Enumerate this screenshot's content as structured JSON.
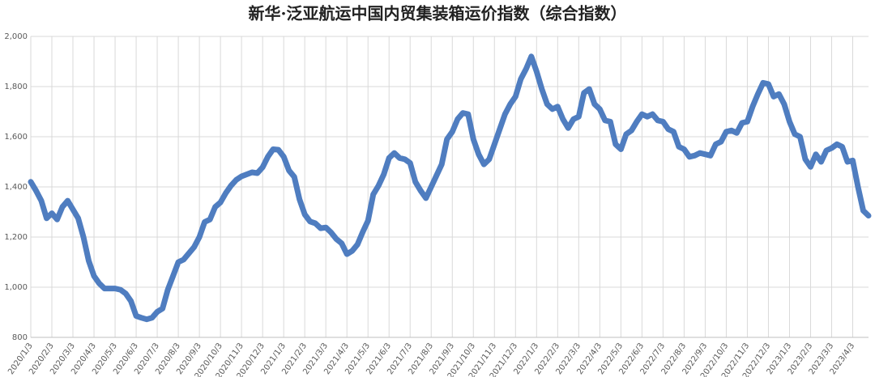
{
  "chart_data": {
    "type": "line",
    "title": "新华·泛亚航运中国内贸集装箱运价指数（综合指数）",
    "categories": [
      "2020/1/3",
      null,
      null,
      null,
      "2020/2/3",
      null,
      null,
      null,
      "2020/3/3",
      null,
      null,
      null,
      "2020/4/3",
      null,
      null,
      null,
      "2020/5/3",
      null,
      null,
      null,
      "2020/6/3",
      null,
      null,
      null,
      "2020/7/3",
      null,
      null,
      null,
      "2020/8/3",
      null,
      null,
      null,
      "2020/9/3",
      null,
      null,
      null,
      "2020/10/3",
      null,
      null,
      null,
      "2020/11/3",
      null,
      null,
      null,
      "2020/12/3",
      null,
      null,
      null,
      "2021/1/3",
      null,
      null,
      null,
      "2021/2/3",
      null,
      null,
      null,
      "2021/3/3",
      null,
      null,
      null,
      "2021/4/3",
      null,
      null,
      null,
      "2021/5/3",
      null,
      null,
      null,
      "2021/6/3",
      null,
      null,
      null,
      "2021/7/3",
      null,
      null,
      null,
      "2021/8/3",
      null,
      null,
      null,
      "2021/9/3",
      null,
      null,
      null,
      "2021/10/3",
      null,
      null,
      null,
      "2021/11/3",
      null,
      null,
      null,
      "2021/12/3",
      null,
      null,
      null,
      "2022/1/3",
      null,
      null,
      null,
      "2022/2/3",
      null,
      null,
      null,
      "2022/3/3",
      null,
      null,
      null,
      "2022/4/3",
      null,
      null,
      null,
      "2022/5/3",
      null,
      null,
      null,
      "2022/6/3",
      null,
      null,
      null,
      "2022/7/3",
      null,
      null,
      null,
      "2022/8/3",
      null,
      null,
      null,
      "2022/9/3",
      null,
      null,
      null,
      "2022/10/3",
      null,
      null,
      null,
      "2022/11/3",
      null,
      null,
      null,
      "2022/12/3",
      null,
      null,
      null,
      "2023/1/3",
      null,
      null,
      null,
      "2023/2/3",
      null,
      null,
      null,
      "2023/3/3",
      null,
      null,
      null,
      "2023/4/3",
      null,
      null,
      null
    ],
    "series": [
      {
        "color": "#4f7dc0",
        "values": [
          1420,
          1385,
          1345,
          1275,
          1295,
          1270,
          1320,
          1345,
          1310,
          1275,
          1200,
          1105,
          1045,
          1015,
          995,
          995,
          995,
          990,
          975,
          945,
          885,
          878,
          872,
          878,
          902,
          915,
          990,
          1045,
          1100,
          1110,
          1135,
          1160,
          1200,
          1260,
          1270,
          1320,
          1338,
          1375,
          1405,
          1428,
          1442,
          1450,
          1458,
          1455,
          1478,
          1520,
          1550,
          1548,
          1520,
          1465,
          1440,
          1350,
          1290,
          1262,
          1255,
          1235,
          1238,
          1218,
          1192,
          1175,
          1132,
          1145,
          1170,
          1220,
          1265,
          1370,
          1405,
          1450,
          1515,
          1535,
          1515,
          1510,
          1495,
          1420,
          1385,
          1355,
          1400,
          1445,
          1490,
          1590,
          1620,
          1670,
          1695,
          1690,
          1590,
          1530,
          1490,
          1510,
          1570,
          1630,
          1690,
          1730,
          1760,
          1830,
          1870,
          1920,
          1860,
          1790,
          1730,
          1710,
          1720,
          1670,
          1635,
          1670,
          1680,
          1775,
          1790,
          1730,
          1710,
          1665,
          1660,
          1570,
          1550,
          1610,
          1625,
          1660,
          1690,
          1680,
          1690,
          1665,
          1660,
          1630,
          1620,
          1560,
          1550,
          1520,
          1525,
          1535,
          1530,
          1525,
          1570,
          1580,
          1620,
          1625,
          1615,
          1655,
          1660,
          1720,
          1770,
          1815,
          1810,
          1760,
          1770,
          1730,
          1660,
          1610,
          1600,
          1510,
          1480,
          1530,
          1500,
          1545,
          1555,
          1570,
          1560,
          1500,
          1505,
          1400,
          1305,
          1285
        ]
      }
    ],
    "ylim": [
      800,
      2000
    ],
    "yticks": [
      800,
      {
        "value": 1000,
        "label": "1,000"
      },
      {
        "value": 1200,
        "label": "1,200"
      },
      {
        "value": 1400,
        "label": "1,400"
      },
      {
        "value": 1600,
        "label": "1,600"
      },
      {
        "value": 1800,
        "label": "1,800"
      },
      {
        "value": 2000,
        "label": "2,000"
      }
    ],
    "grid": true
  }
}
